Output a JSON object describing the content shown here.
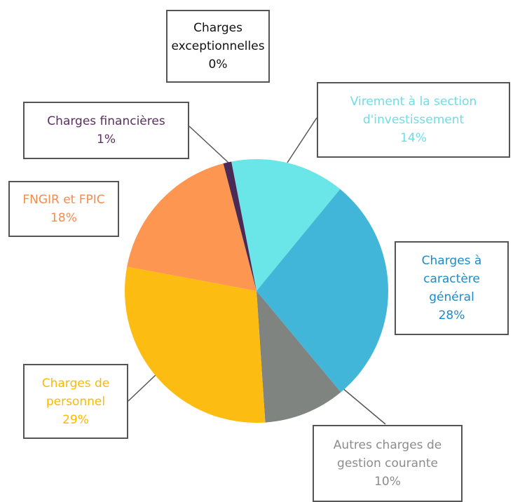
{
  "chart_data": {
    "type": "pie",
    "categories": [
      "Virement à la section d'investissement",
      "Charges à caractère général",
      "Autres charges de gestion courante",
      "Charges de personnel",
      "FNGIR et FPIC",
      "Charges financières",
      "Charges exceptionnelles"
    ],
    "values": [
      14,
      28,
      10,
      29,
      18,
      1,
      0
    ],
    "value_labels": [
      "14%",
      "28%",
      "10%",
      "29%",
      "18%",
      "1%",
      "0%"
    ],
    "colors": [
      "#6ae5e8",
      "#42b6d8",
      "#7f8481",
      "#fdbc11",
      "#fd9650",
      "#4b2a55",
      "#000000"
    ]
  }
}
